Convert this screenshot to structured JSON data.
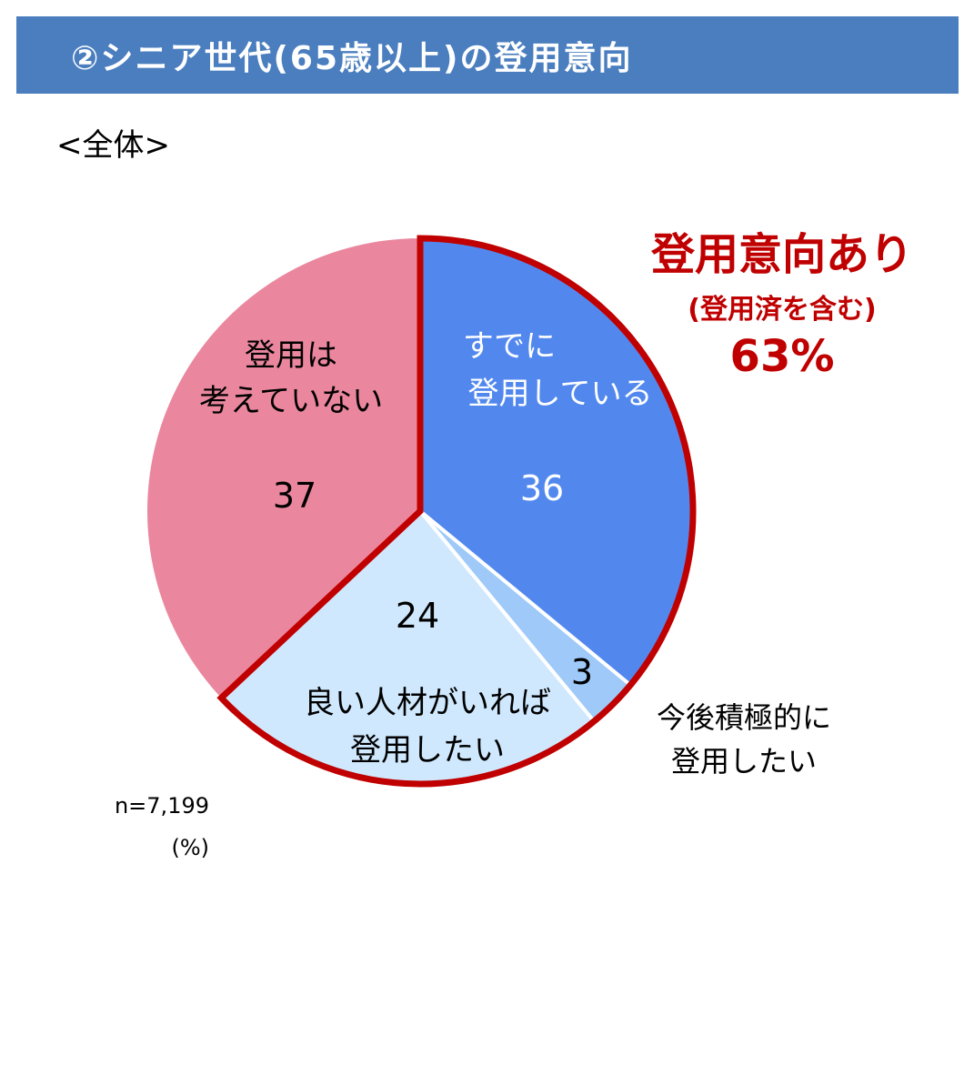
{
  "header": {
    "title": "②シニア世代(65歳以上)の登用意向"
  },
  "scope_label": "<全体>",
  "summary": {
    "title": "登用意向あり",
    "subtitle": "(登用済を含む)",
    "value": "63%",
    "color": "#c00000"
  },
  "footnote": {
    "n": "n=7,199",
    "unit": "(%)"
  },
  "chart_data": {
    "type": "pie",
    "title": "",
    "start_angle_deg": 0,
    "direction": "clockwise",
    "slices": [
      {
        "label_lines": [
          "すでに",
          "登用している"
        ],
        "value": 36,
        "value_label": "36",
        "color": "#5288ee",
        "text_color": "#ffffff"
      },
      {
        "label_lines": [
          "今後積極的に",
          "登用したい"
        ],
        "value": 3,
        "value_label": "3",
        "color": "#9ec9f8",
        "text_color": "#000000"
      },
      {
        "label_lines": [
          "良い人材がいれば",
          "登用したい"
        ],
        "value": 24,
        "value_label": "24",
        "color": "#cfe8fd",
        "text_color": "#000000"
      },
      {
        "label_lines": [
          "登用は",
          "考えていない"
        ],
        "value": 37,
        "value_label": "37",
        "color": "#ea879e",
        "text_color": "#000000"
      }
    ],
    "highlight_group": {
      "slices": [
        0,
        1,
        2
      ],
      "outline_color": "#c00000"
    }
  }
}
